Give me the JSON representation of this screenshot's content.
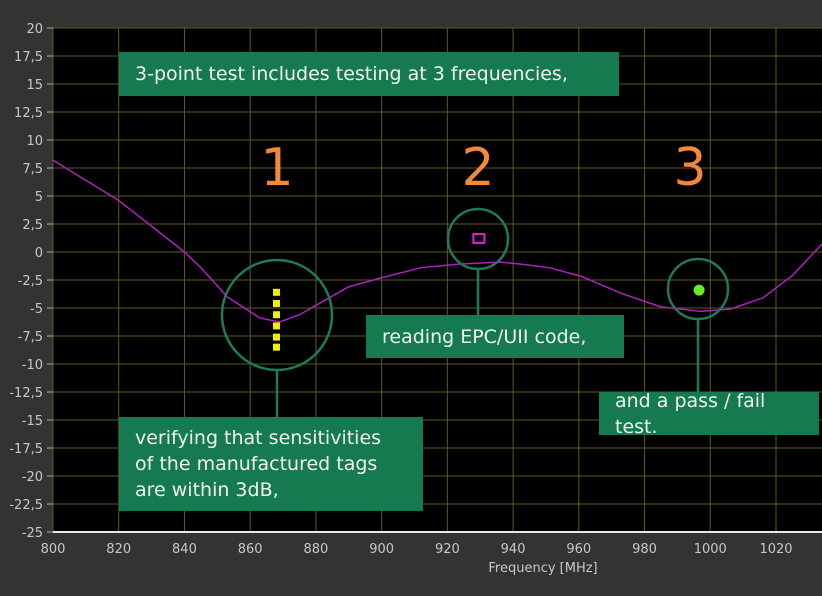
{
  "chart_data": {
    "type": "line",
    "xlabel": "Frequency [MHz]",
    "ylabel": "",
    "xlim": [
      800,
      1034
    ],
    "ylim": [
      -25,
      20
    ],
    "x_ticks": [
      "800",
      "820",
      "840",
      "860",
      "880",
      "900",
      "920",
      "940",
      "960",
      "980",
      "1000",
      "1020"
    ],
    "y_ticks": [
      "20",
      "17,5",
      "15",
      "12,5",
      "10",
      "7,5",
      "5",
      "2,5",
      "0",
      "-2,5",
      "-5",
      "-7,5",
      "-10",
      "-12,5",
      "-15",
      "-17,5",
      "-20",
      "-22,5",
      "-25"
    ],
    "grid": true,
    "series": [
      {
        "color": "#b020c0",
        "x": [
          800,
          820,
          840,
          845,
          853,
          863,
          869,
          875,
          884,
          890,
          900,
          912,
          924,
          936,
          942,
          951,
          961,
          973,
          985,
          997,
          1006,
          1016,
          1025,
          1034
        ],
        "y": [
          8.2,
          4.6,
          0,
          -1.4,
          -4,
          -5.9,
          -6.25,
          -5.6,
          -4.1,
          -3.1,
          -2.3,
          -1.4,
          -1.07,
          -0.9,
          -1.07,
          -1.4,
          -2.2,
          -3.7,
          -4.9,
          -5.3,
          -5.1,
          -4.1,
          -2.1,
          0.7
        ]
      }
    ],
    "markers": [
      {
        "shape": "square-dotted-column",
        "color": "#f0f000",
        "x": 868,
        "y": [
          -3.6,
          -4.6,
          -5.6,
          -6.6,
          -7.6,
          -8.5
        ]
      },
      {
        "shape": "open-square",
        "color": "#e020e0",
        "x": 929.6,
        "y": [
          1.2
        ]
      },
      {
        "shape": "dot",
        "color": "#66ee22",
        "x": 996.6,
        "y": [
          -3.4
        ]
      }
    ],
    "annotations": {
      "title_box": "3-point test includes testing at 3 frequencies,",
      "point_labels": [
        "1",
        "2",
        "3"
      ],
      "box_1": [
        "verifying that sensitivities",
        "of the manufactured tags",
        "are within 3dB,"
      ],
      "box_2": "reading EPC/UII code,",
      "box_3": "and a pass / fail test."
    }
  },
  "colors": {
    "annotation_bg": "#157a4f",
    "highlight_circle": "#1e7a58",
    "number": "#f08a3a",
    "grid": "#5c5a1e"
  }
}
